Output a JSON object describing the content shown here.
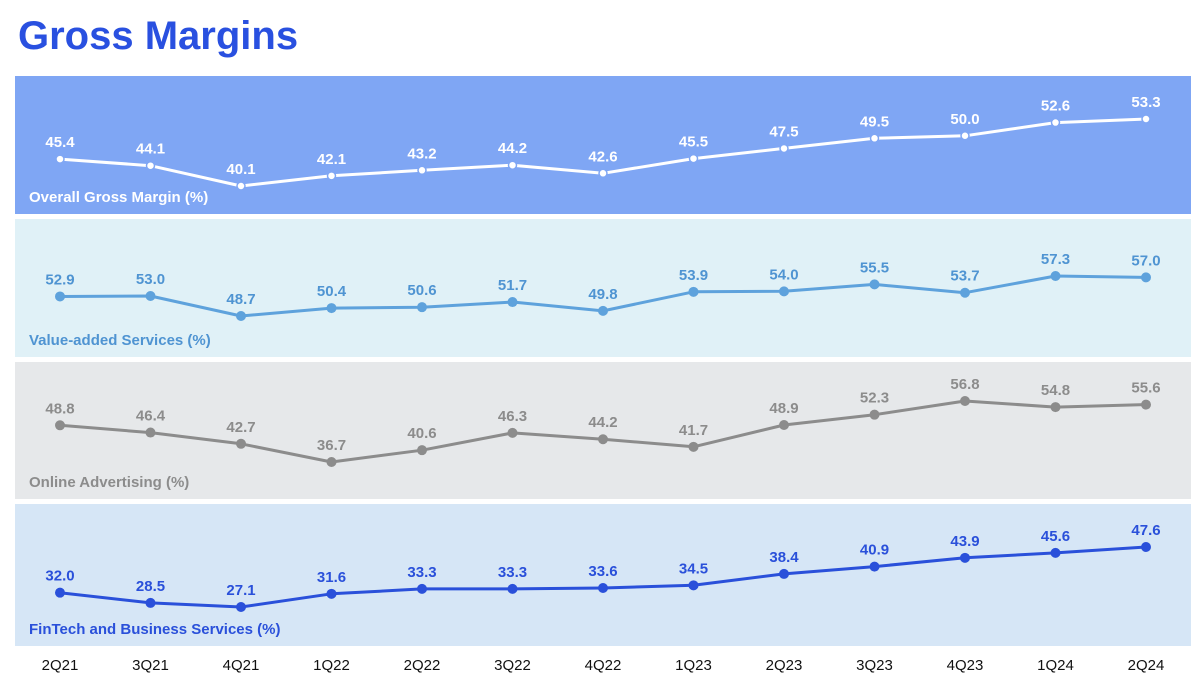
{
  "title": "Gross Margins",
  "chart_data": {
    "type": "line",
    "categories": [
      "2Q21",
      "3Q21",
      "4Q21",
      "1Q22",
      "2Q22",
      "3Q22",
      "4Q22",
      "1Q23",
      "2Q23",
      "3Q23",
      "4Q23",
      "1Q24",
      "2Q24"
    ],
    "series": [
      {
        "name": "Overall Gross Margin (%)",
        "values": [
          45.4,
          44.1,
          40.1,
          42.1,
          43.2,
          44.2,
          42.6,
          45.5,
          47.5,
          49.5,
          50.0,
          52.6,
          53.3
        ],
        "panel_bg": "#7fa6f4",
        "line_color": "#ffffff",
        "marker_fill": "#ffffff",
        "marker_stroke": "#7fa6f4",
        "label_color": "#ffffff"
      },
      {
        "name": "Value-added Services (%)",
        "values": [
          52.9,
          53.0,
          48.7,
          50.4,
          50.6,
          51.7,
          49.8,
          53.9,
          54.0,
          55.5,
          53.7,
          57.3,
          57.0
        ],
        "panel_bg": "#e0f1f7",
        "line_color": "#5ea2dc",
        "marker_fill": "#5ea2dc",
        "marker_stroke": "#5ea2dc",
        "label_color": "#4f94d2"
      },
      {
        "name": "Online Advertising (%)",
        "values": [
          48.8,
          46.4,
          42.7,
          36.7,
          40.6,
          46.3,
          44.2,
          41.7,
          48.9,
          52.3,
          56.8,
          54.8,
          55.6
        ],
        "panel_bg": "#e6e8ea",
        "line_color": "#8c8c8c",
        "marker_fill": "#8c8c8c",
        "marker_stroke": "#8c8c8c",
        "label_color": "#8c8c8c"
      },
      {
        "name": "FinTech and Business Services (%)",
        "values": [
          32.0,
          28.5,
          27.1,
          31.6,
          33.3,
          33.3,
          33.6,
          34.5,
          38.4,
          40.9,
          43.9,
          45.6,
          47.6
        ],
        "panel_bg": "#d6e6f6",
        "line_color": "#2a50da",
        "marker_fill": "#2a50da",
        "marker_stroke": "#2a50da",
        "label_color": "#2a50da"
      }
    ]
  }
}
